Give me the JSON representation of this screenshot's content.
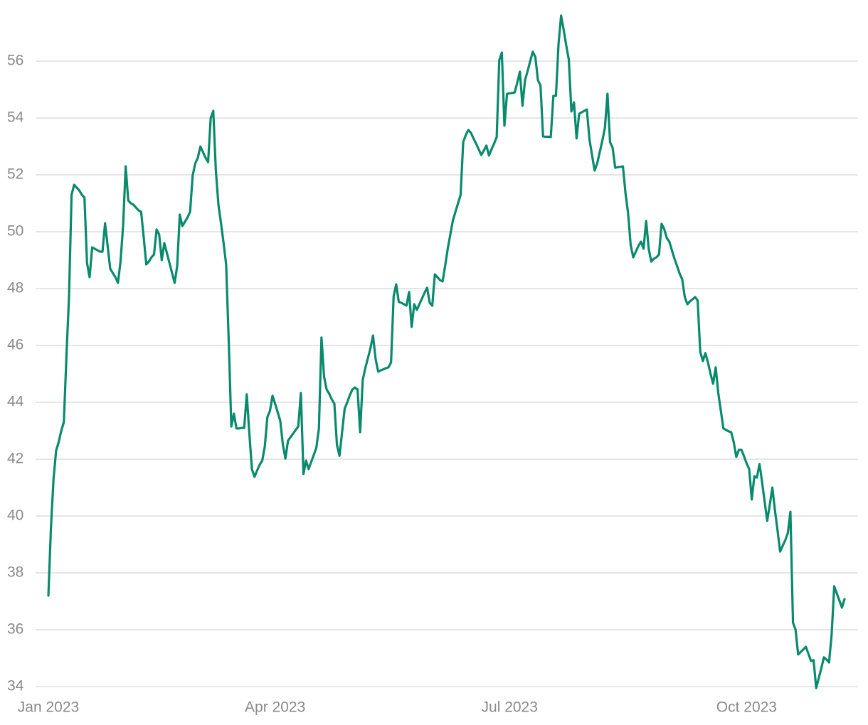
{
  "chart_data": {
    "type": "line",
    "categories": [
      "Jan 2023",
      null,
      null,
      null,
      null,
      null,
      null,
      null,
      null,
      null,
      null,
      null,
      null,
      null,
      null,
      null,
      null,
      null,
      null,
      null,
      null,
      null,
      null,
      null,
      null,
      null,
      null,
      null,
      null,
      null,
      null,
      null,
      null,
      null,
      null,
      null,
      null,
      null,
      null,
      null,
      null,
      null,
      null,
      null,
      null,
      null,
      null,
      null,
      null,
      null,
      null,
      null,
      null,
      null,
      null,
      null,
      null,
      null,
      null,
      null,
      null,
      null,
      null,
      null,
      null,
      null,
      null,
      null,
      null,
      null,
      null,
      null,
      null,
      null,
      null,
      null,
      null,
      null,
      null,
      null,
      null,
      null,
      null,
      null,
      null,
      null,
      null,
      null,
      "Apr 2023",
      null,
      null,
      null,
      null,
      null,
      null,
      null,
      null,
      null,
      null,
      null,
      null,
      null,
      null,
      null,
      null,
      null,
      null,
      null,
      null,
      null,
      null,
      null,
      null,
      null,
      null,
      null,
      null,
      null,
      null,
      null,
      null,
      null,
      null,
      null,
      null,
      null,
      null,
      null,
      null,
      null,
      null,
      null,
      null,
      null,
      null,
      null,
      null,
      null,
      null,
      null,
      null,
      null,
      null,
      null,
      null,
      null,
      null,
      null,
      null,
      null,
      null,
      null,
      null,
      null,
      null,
      null,
      null,
      null,
      null,
      null,
      null,
      null,
      null,
      null,
      null,
      null,
      null,
      null,
      null,
      null,
      null,
      null,
      null,
      null,
      null,
      null,
      null,
      null,
      null,
      "Jul 2023",
      null,
      null,
      null,
      null,
      null,
      null,
      null,
      null,
      null,
      null,
      null,
      null,
      null,
      null,
      null,
      null,
      null,
      null,
      null,
      null,
      null,
      null,
      null,
      null,
      null,
      null,
      null,
      null,
      null,
      null,
      null,
      null,
      null,
      null,
      null,
      null,
      null,
      null,
      null,
      null,
      null,
      null,
      null,
      null,
      null,
      null,
      null,
      null,
      null,
      null,
      null,
      null,
      null,
      null,
      null,
      null,
      null,
      null,
      null,
      null,
      null,
      null,
      null,
      null,
      null,
      null,
      null,
      null,
      null,
      null,
      null,
      null,
      null,
      null,
      null,
      null,
      null,
      null,
      null,
      null,
      null,
      null,
      null,
      null,
      null,
      null,
      null,
      null,
      null,
      null,
      null,
      "Oct 2023",
      null,
      null,
      null,
      null,
      null,
      null,
      null,
      null,
      null,
      null,
      null,
      null,
      null,
      null,
      null,
      null,
      null,
      null,
      null,
      null,
      null,
      null,
      null,
      null,
      null,
      null,
      null,
      null,
      null,
      null,
      null,
      null,
      null,
      null,
      null,
      null,
      null,
      null
    ],
    "series": [
      {
        "color": "#0a8a6c",
        "values": [
          37.2,
          39.6,
          41.3,
          42.3,
          42.6,
          43.0,
          43.3,
          45.6,
          47.7,
          51.3,
          51.65,
          51.55,
          51.45,
          51.3,
          51.2,
          48.9,
          48.4,
          49.45,
          49.4,
          49.35,
          49.3,
          49.3,
          50.3,
          49.5,
          48.7,
          48.55,
          48.4,
          48.2,
          48.95,
          50.2,
          52.3,
          51.1,
          51.0,
          50.95,
          50.85,
          50.75,
          50.7,
          49.8,
          48.85,
          48.95,
          49.1,
          49.2,
          50.08,
          49.9,
          49.0,
          49.6,
          49.25,
          48.9,
          48.55,
          48.2,
          48.8,
          50.6,
          50.2,
          50.35,
          50.5,
          50.7,
          51.98,
          52.4,
          52.6,
          53.0,
          52.8,
          52.6,
          52.45,
          54.0,
          54.25,
          52.15,
          50.95,
          50.3,
          49.6,
          48.85,
          46.15,
          43.15,
          43.6,
          43.08,
          43.08,
          43.1,
          43.1,
          44.28,
          42.9,
          41.65,
          41.38,
          41.6,
          41.8,
          41.95,
          42.45,
          43.48,
          43.7,
          44.23,
          43.95,
          43.65,
          43.35,
          42.52,
          42.02,
          42.65,
          42.78,
          42.9,
          43.03,
          43.15,
          44.33,
          41.48,
          41.95,
          41.65,
          41.9,
          42.15,
          42.4,
          43.08,
          46.28,
          44.9,
          44.45,
          44.3,
          44.1,
          43.95,
          42.5,
          42.12,
          42.95,
          43.78,
          44.0,
          44.25,
          44.45,
          44.52,
          44.45,
          42.95,
          44.78,
          45.2,
          45.55,
          45.9,
          46.35,
          45.53,
          45.08,
          45.12,
          45.16,
          45.2,
          45.23,
          45.4,
          47.73,
          48.15,
          47.53,
          47.5,
          47.45,
          47.4,
          47.88,
          46.65,
          47.45,
          47.25,
          47.45,
          47.65,
          47.85,
          48.03,
          47.5,
          47.4,
          48.5,
          48.4,
          48.3,
          48.25,
          48.8,
          49.4,
          49.9,
          50.4,
          50.7,
          51.0,
          51.3,
          53.15,
          53.4,
          53.58,
          53.48,
          53.28,
          53.1,
          52.9,
          52.7,
          52.85,
          53.03,
          52.68,
          52.9,
          53.1,
          53.33,
          56.03,
          56.3,
          53.73,
          54.85,
          54.87,
          54.88,
          54.9,
          55.25,
          55.63,
          54.43,
          55.33,
          55.65,
          56.0,
          56.33,
          56.15,
          55.33,
          55.15,
          53.35,
          53.34,
          53.34,
          53.33,
          54.78,
          54.78,
          56.6,
          57.6,
          57.1,
          56.55,
          56.05,
          54.23,
          54.55,
          53.28,
          54.15,
          54.2,
          54.25,
          54.3,
          53.25,
          52.7,
          52.15,
          52.4,
          52.8,
          53.2,
          53.65,
          54.85,
          53.15,
          52.95,
          52.25,
          52.27,
          52.28,
          52.3,
          51.35,
          50.65,
          49.53,
          49.1,
          49.3,
          49.5,
          49.65,
          49.4,
          50.38,
          49.4,
          48.95,
          49.05,
          49.1,
          49.2,
          50.28,
          50.1,
          49.78,
          49.65,
          49.35,
          49.05,
          48.8,
          48.53,
          48.33,
          47.7,
          47.45,
          47.55,
          47.62,
          47.7,
          47.58,
          45.78,
          45.45,
          45.73,
          45.4,
          45.0,
          44.65,
          45.23,
          44.33,
          43.7,
          43.08,
          43.03,
          42.98,
          42.95,
          42.6,
          42.08,
          42.33,
          42.33,
          42.1,
          41.85,
          41.65,
          40.58,
          41.4,
          41.35,
          41.83,
          41.2,
          40.5,
          39.83,
          40.4,
          41.0,
          40.2,
          39.5,
          38.75,
          38.95,
          39.15,
          39.4,
          40.15,
          36.25,
          36.0,
          35.13,
          35.22,
          35.31,
          35.4,
          35.15,
          34.9,
          34.93,
          33.95,
          34.3,
          34.65,
          35.03,
          34.95,
          34.85,
          35.83,
          37.53,
          37.28,
          37.03,
          36.78,
          37.08
        ]
      }
    ],
    "ylim": [
      34,
      57.8
    ],
    "yticks": [
      34,
      36,
      38,
      40,
      42,
      44,
      46,
      48,
      50,
      52,
      54,
      56
    ],
    "grid": true
  }
}
